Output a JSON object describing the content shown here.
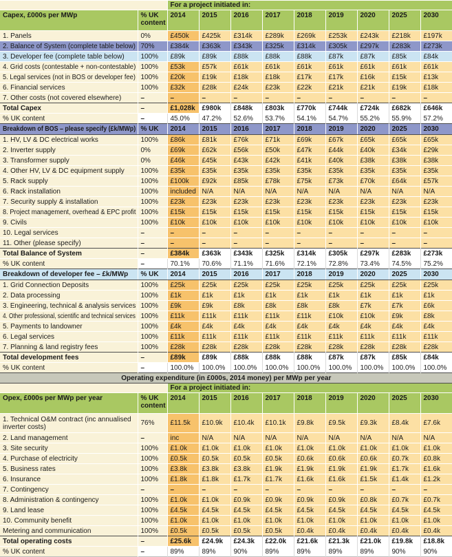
{
  "colors": {
    "header_green": "#a9c862",
    "label_cream": "#f9f2d8",
    "year_col_light_orange": "#fce0a4",
    "first_year_col_orange": "#f7c26b",
    "bos_purple": "#8e97c9",
    "devfee_blue": "#cbe4f2",
    "opex_band_gray": "#c7c8ba",
    "text": "#1a1a1a"
  },
  "table": {
    "project_initiated_label": "For a project initiated in:",
    "years": [
      "2014",
      "2015",
      "2016",
      "2017",
      "2018",
      "2019",
      "2020",
      "2025",
      "2030"
    ],
    "sections": [
      {
        "id": "capex",
        "pre_row": true,
        "header": {
          "title": "Capex, £000s per MWp",
          "uk": "% UK content",
          "style": "green"
        },
        "rows": [
          {
            "label": "1. Panels",
            "uk": "0%",
            "style": "normal",
            "values": [
              "£450k",
              "£425k",
              "£314k",
              "£289k",
              "£269k",
              "£253k",
              "£243k",
              "£218k",
              "£197k"
            ]
          },
          {
            "label": "2. Balance of System (complete table below)",
            "uk": "70%",
            "style": "purple",
            "values": [
              "£384k",
              "£363k",
              "£343k",
              "£325k",
              "£314k",
              "£305k",
              "£297k",
              "£283k",
              "£273k"
            ]
          },
          {
            "label": "3. Developer fee (complete table below)",
            "uk": "100%",
            "style": "blue",
            "values": [
              "£89k",
              "£89k",
              "£88k",
              "£88k",
              "£88k",
              "£87k",
              "£87k",
              "£85k",
              "£84k"
            ]
          },
          {
            "label": "4. Grid costs (contestable + non-contestable)",
            "uk": "100%",
            "style": "normal",
            "values": [
              "£53k",
              "£57k",
              "£61k",
              "£61k",
              "£61k",
              "£61k",
              "£61k",
              "£61k",
              "£61k"
            ]
          },
          {
            "label": "5. Legal services (not in BOS or developer fee)",
            "uk": "100%",
            "style": "normal",
            "values": [
              "£20k",
              "£19k",
              "£18k",
              "£18k",
              "£17k",
              "£17k",
              "£16k",
              "£15k",
              "£13k"
            ]
          },
          {
            "label": "6. Financial services",
            "uk": "100%",
            "style": "normal",
            "values": [
              "£32k",
              "£28k",
              "£24k",
              "£23k",
              "£22k",
              "£21k",
              "£21k",
              "£19k",
              "£18k"
            ]
          },
          {
            "label": "7. Other costs (not covered elsewhere)",
            "uk": "–",
            "style": "normal",
            "values": [
              "–",
              "–",
              "–",
              "–",
              "–",
              "–",
              "–",
              "–",
              "–"
            ]
          },
          {
            "label": "Total Capex",
            "uk": "–",
            "style": "total",
            "values": [
              "£1,028k",
              "£980k",
              "£848k",
              "£803k",
              "£770k",
              "£744k",
              "£724k",
              "£682k",
              "£646k"
            ]
          },
          {
            "label": "% UK content",
            "uk": "–",
            "style": "ukrow",
            "values": [
              "45.0%",
              "47.2%",
              "52.6%",
              "53.7%",
              "54.1%",
              "54.7%",
              "55.2%",
              "55.9%",
              "57.2%"
            ]
          }
        ]
      },
      {
        "id": "bos",
        "header": {
          "title": "Breakdown of BOS – please specify (£k/MWp)",
          "uk": "% UK",
          "style": "purple"
        },
        "rows": [
          {
            "label": "1. HV, LV & DC electrical works",
            "uk": "100%",
            "style": "normal",
            "values": [
              "£86k",
              "£81k",
              "£76k",
              "£71k",
              "£69k",
              "£67k",
              "£65k",
              "£65k",
              "£65k"
            ]
          },
          {
            "label": "2. Inverter supply",
            "uk": "0%",
            "style": "normal",
            "values": [
              "£69k",
              "£62k",
              "£56k",
              "£50k",
              "£47k",
              "£44k",
              "£40k",
              "£34k",
              "£29k"
            ]
          },
          {
            "label": "3. Transformer supply",
            "uk": "0%",
            "style": "normal",
            "values": [
              "£46k",
              "£45k",
              "£43k",
              "£42k",
              "£41k",
              "£40k",
              "£38k",
              "£38k",
              "£38k"
            ]
          },
          {
            "label": "4. Other HV, LV & DC equipment supply",
            "uk": "100%",
            "style": "normal",
            "values": [
              "£35k",
              "£35k",
              "£35k",
              "£35k",
              "£35k",
              "£35k",
              "£35k",
              "£35k",
              "£35k"
            ]
          },
          {
            "label": "5. Rack supply",
            "uk": "100%",
            "style": "normal",
            "values": [
              "£100k",
              "£92k",
              "£85k",
              "£78k",
              "£75k",
              "£73k",
              "£70k",
              "£64k",
              "£57k"
            ]
          },
          {
            "label": "6. Rack installation",
            "uk": "100%",
            "style": "normal",
            "values": [
              "included",
              "N/A",
              "N/A",
              "N/A",
              "N/A",
              "N/A",
              "N/A",
              "N/A",
              "N/A"
            ]
          },
          {
            "label": "7. Security supply & installation",
            "uk": "100%",
            "style": "normal",
            "values": [
              "£23k",
              "£23k",
              "£23k",
              "£23k",
              "£23k",
              "£23k",
              "£23k",
              "£23k",
              "£23k"
            ]
          },
          {
            "label": "8. Project management, overhead & EPC profit",
            "uk": "100%",
            "style": "normal",
            "values": [
              "£15k",
              "£15k",
              "£15k",
              "£15k",
              "£15k",
              "£15k",
              "£15k",
              "£15k",
              "£15k"
            ]
          },
          {
            "label": "9. Civils",
            "uk": "100%",
            "style": "normal",
            "values": [
              "£10k",
              "£10k",
              "£10k",
              "£10k",
              "£10k",
              "£10k",
              "£10k",
              "£10k",
              "£10k"
            ]
          },
          {
            "label": "10. Legal services",
            "uk": "–",
            "style": "normal",
            "values": [
              "–",
              "–",
              "–",
              "–",
              "–",
              "–",
              "–",
              "–",
              "–"
            ]
          },
          {
            "label": "11. Other (please specify)",
            "uk": "–",
            "style": "normal",
            "values": [
              "–",
              "–",
              "–",
              "–",
              "–",
              "–",
              "–",
              "–",
              "–"
            ]
          },
          {
            "label": "Total Balance of System",
            "uk": "–",
            "style": "total",
            "values": [
              "£384k",
              "£363k",
              "£343k",
              "£325k",
              "£314k",
              "£305k",
              "£297k",
              "£283k",
              "£273k"
            ]
          },
          {
            "label": "% UK content",
            "uk": "–",
            "style": "ukrow",
            "values": [
              "70.1%",
              "70.6%",
              "71.1%",
              "71.6%",
              "72.1%",
              "72.8%",
              "73.4%",
              "74.5%",
              "75.2%"
            ]
          }
        ]
      },
      {
        "id": "devfee",
        "header": {
          "title": "Breakdown of developer fee – £k/MWp",
          "uk": "% UK",
          "style": "blue"
        },
        "rows": [
          {
            "label": "1. Grid Connection Deposits",
            "uk": "100%",
            "style": "normal",
            "values": [
              "£25k",
              "£25k",
              "£25k",
              "£25k",
              "£25k",
              "£25k",
              "£25k",
              "£25k",
              "£25k"
            ]
          },
          {
            "label": "2. Data processing",
            "uk": "100%",
            "style": "normal",
            "values": [
              "£1k",
              "£1k",
              "£1k",
              "£1k",
              "£1k",
              "£1k",
              "£1k",
              "£1k",
              "£1k"
            ]
          },
          {
            "label": "3. Engineering, technical & analysis services",
            "uk": "100%",
            "style": "normal",
            "values": [
              "£9k",
              "£9k",
              "£8k",
              "£8k",
              "£8k",
              "£8k",
              "£7k",
              "£7k",
              "£6k"
            ]
          },
          {
            "label": "4. Other professional, scientific and technical services",
            "uk": "100%",
            "style": "normal",
            "values": [
              "£11k",
              "£11k",
              "£11k",
              "£11k",
              "£11k",
              "£10k",
              "£10k",
              "£9k",
              "£8k"
            ]
          },
          {
            "label": "5. Payments to landowner",
            "uk": "100%",
            "style": "normal",
            "values": [
              "£4k",
              "£4k",
              "£4k",
              "£4k",
              "£4k",
              "£4k",
              "£4k",
              "£4k",
              "£4k"
            ]
          },
          {
            "label": "6. Legal services",
            "uk": "100%",
            "style": "normal",
            "values": [
              "£11k",
              "£11k",
              "£11k",
              "£11k",
              "£11k",
              "£11k",
              "£11k",
              "£11k",
              "£11k"
            ]
          },
          {
            "label": "7. Planning & land registry fees",
            "uk": "100%",
            "style": "normal",
            "values": [
              "£28k",
              "£28k",
              "£28k",
              "£28k",
              "£28k",
              "£28k",
              "£28k",
              "£28k",
              "£28k"
            ]
          },
          {
            "label": "Total development fees",
            "uk": "–",
            "style": "total",
            "values": [
              "£89k",
              "£89k",
              "£88k",
              "£88k",
              "£88k",
              "£87k",
              "£87k",
              "£85k",
              "£84k"
            ]
          },
          {
            "label": "% UK content",
            "uk": "–",
            "style": "ukrow",
            "values": [
              "100.0%",
              "100.0%",
              "100.0%",
              "100.0%",
              "100.0%",
              "100.0%",
              "100.0%",
              "100.0%",
              "100.0%"
            ]
          }
        ]
      },
      {
        "id": "opex",
        "band": "Operating expenditure (in £000s, 2014 money) per MWp per year",
        "pre_row": true,
        "header": {
          "title": "Opex, £000s per MWp per year",
          "uk": "% UK content",
          "style": "green"
        },
        "rows": [
          {
            "label": "1. Technical O&M contract (inc annualised inverter costs)",
            "uk": "76%",
            "style": "normal",
            "wrap": true,
            "values": [
              "£11.5k",
              "£10.9k",
              "£10.4k",
              "£10.1k",
              "£9.8k",
              "£9.5k",
              "£9.3k",
              "£8.4k",
              "£7.6k"
            ]
          },
          {
            "label": "2. Land management",
            "uk": "–",
            "style": "normal",
            "values": [
              "inc",
              "N/A",
              "N/A",
              "N/A",
              "N/A",
              "N/A",
              "N/A",
              "N/A",
              "N/A"
            ]
          },
          {
            "label": "3. Site security",
            "uk": "100%",
            "style": "normal",
            "values": [
              "£1.0k",
              "£1.0k",
              "£1.0k",
              "£1.0k",
              "£1.0k",
              "£1.0k",
              "£1.0k",
              "£1.0k",
              "£1.0k"
            ]
          },
          {
            "label": "4. Purchase of electricity",
            "uk": "100%",
            "style": "normal",
            "values": [
              "£0.5k",
              "£0.5k",
              "£0.5k",
              "£0.5k",
              "£0.6k",
              "£0.6k",
              "£0.6k",
              "£0.7k",
              "£0.8k"
            ]
          },
          {
            "label": "5. Business rates",
            "uk": "100%",
            "style": "normal",
            "values": [
              "£3.8k",
              "£3.8k",
              "£3.8k",
              "£1.9k",
              "£1.9k",
              "£1.9k",
              "£1.9k",
              "£1.7k",
              "£1.6k"
            ]
          },
          {
            "label": "6. Insurance",
            "uk": "100%",
            "style": "normal",
            "values": [
              "£1.8k",
              "£1.8k",
              "£1.7k",
              "£1.7k",
              "£1.6k",
              "£1.6k",
              "£1.5k",
              "£1.4k",
              "£1.2k"
            ]
          },
          {
            "label": "7. Contingency",
            "uk": "–",
            "style": "normal",
            "values": [
              "–",
              "–",
              "–",
              "–",
              "–",
              "–",
              "–",
              "–",
              "–"
            ]
          },
          {
            "label": "8. Administration & contingency",
            "uk": "100%",
            "style": "normal",
            "values": [
              "£1.0k",
              "£1.0k",
              "£0.9k",
              "£0.9k",
              "£0.9k",
              "£0.9k",
              "£0.8k",
              "£0.7k",
              "£0.7k"
            ]
          },
          {
            "label": "9. Land lease",
            "uk": "100%",
            "style": "normal",
            "values": [
              "£4.5k",
              "£4.5k",
              "£4.5k",
              "£4.5k",
              "£4.5k",
              "£4.5k",
              "£4.5k",
              "£4.5k",
              "£4.5k"
            ]
          },
          {
            "label": "10. Community benefit",
            "uk": "100%",
            "style": "normal",
            "values": [
              "£1.0k",
              "£1.0k",
              "£1.0k",
              "£1.0k",
              "£1.0k",
              "£1.0k",
              "£1.0k",
              "£1.0k",
              "£1.0k"
            ]
          },
          {
            "label": "Metering and communication",
            "uk": "100%",
            "style": "normal",
            "values": [
              "£0.5k",
              "£0.5k",
              "£0.5k",
              "£0.5k",
              "£0.4k",
              "£0.4k",
              "£0.4k",
              "£0.4k",
              "£0.4k"
            ]
          },
          {
            "label": "Total operating costs",
            "uk": "–",
            "style": "total",
            "values": [
              "£25.6k",
              "£24.9k",
              "£24.3k",
              "£22.0k",
              "£21.6k",
              "£21.3k",
              "£21.0k",
              "£19.8k",
              "£18.8k"
            ]
          },
          {
            "label": "% UK content",
            "uk": "–",
            "style": "ukrow",
            "values": [
              "89%",
              "89%",
              "90%",
              "89%",
              "89%",
              "89%",
              "89%",
              "90%",
              "90%"
            ]
          }
        ]
      }
    ]
  }
}
